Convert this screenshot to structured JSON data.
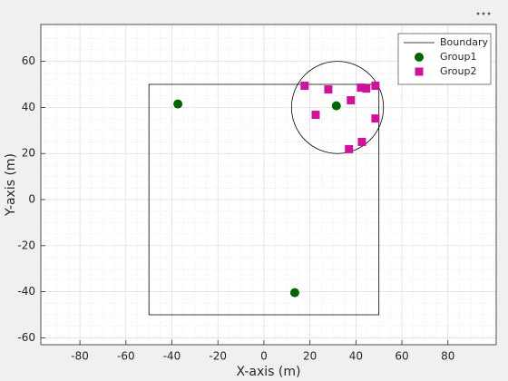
{
  "chart_data": {
    "type": "scatter",
    "xlabel": "X-axis (m)",
    "ylabel": "Y-axis (m)",
    "xlim": [
      -97,
      101
    ],
    "ylim": [
      -63,
      76
    ],
    "xticks": [
      -80,
      -60,
      -40,
      -20,
      0,
      20,
      40,
      60,
      80
    ],
    "yticks": [
      -60,
      -40,
      -20,
      0,
      20,
      40,
      60
    ],
    "grid": true,
    "minor_grid": true,
    "minor_per_major": 4,
    "legend": "top-right",
    "circle": {
      "color": "#000000",
      "center": [
        32,
        40
      ],
      "radius": 20
    },
    "series": [
      {
        "name": "Boundary",
        "kind": "line",
        "color": "#000000",
        "x": [
          -50,
          50,
          50,
          -50,
          -50
        ],
        "values": [
          -50,
          -50,
          50,
          50,
          -50
        ]
      },
      {
        "name": "Group1",
        "kind": "marker",
        "marker": "circle",
        "color": "#006400",
        "x": [
          -37.4,
          13.4,
          31.5
        ],
        "values": [
          41.5,
          -40.4,
          40.7
        ]
      },
      {
        "name": "Group2",
        "kind": "marker",
        "marker": "square",
        "color": "#d0119a",
        "x": [
          17.7,
          28,
          22.5,
          37.8,
          42.2,
          44.5,
          48.5,
          48.5,
          42.6,
          37
        ],
        "values": [
          49.4,
          47.8,
          36.8,
          43.1,
          48.6,
          48.2,
          49.4,
          35.2,
          25,
          21.9
        ]
      }
    ]
  }
}
